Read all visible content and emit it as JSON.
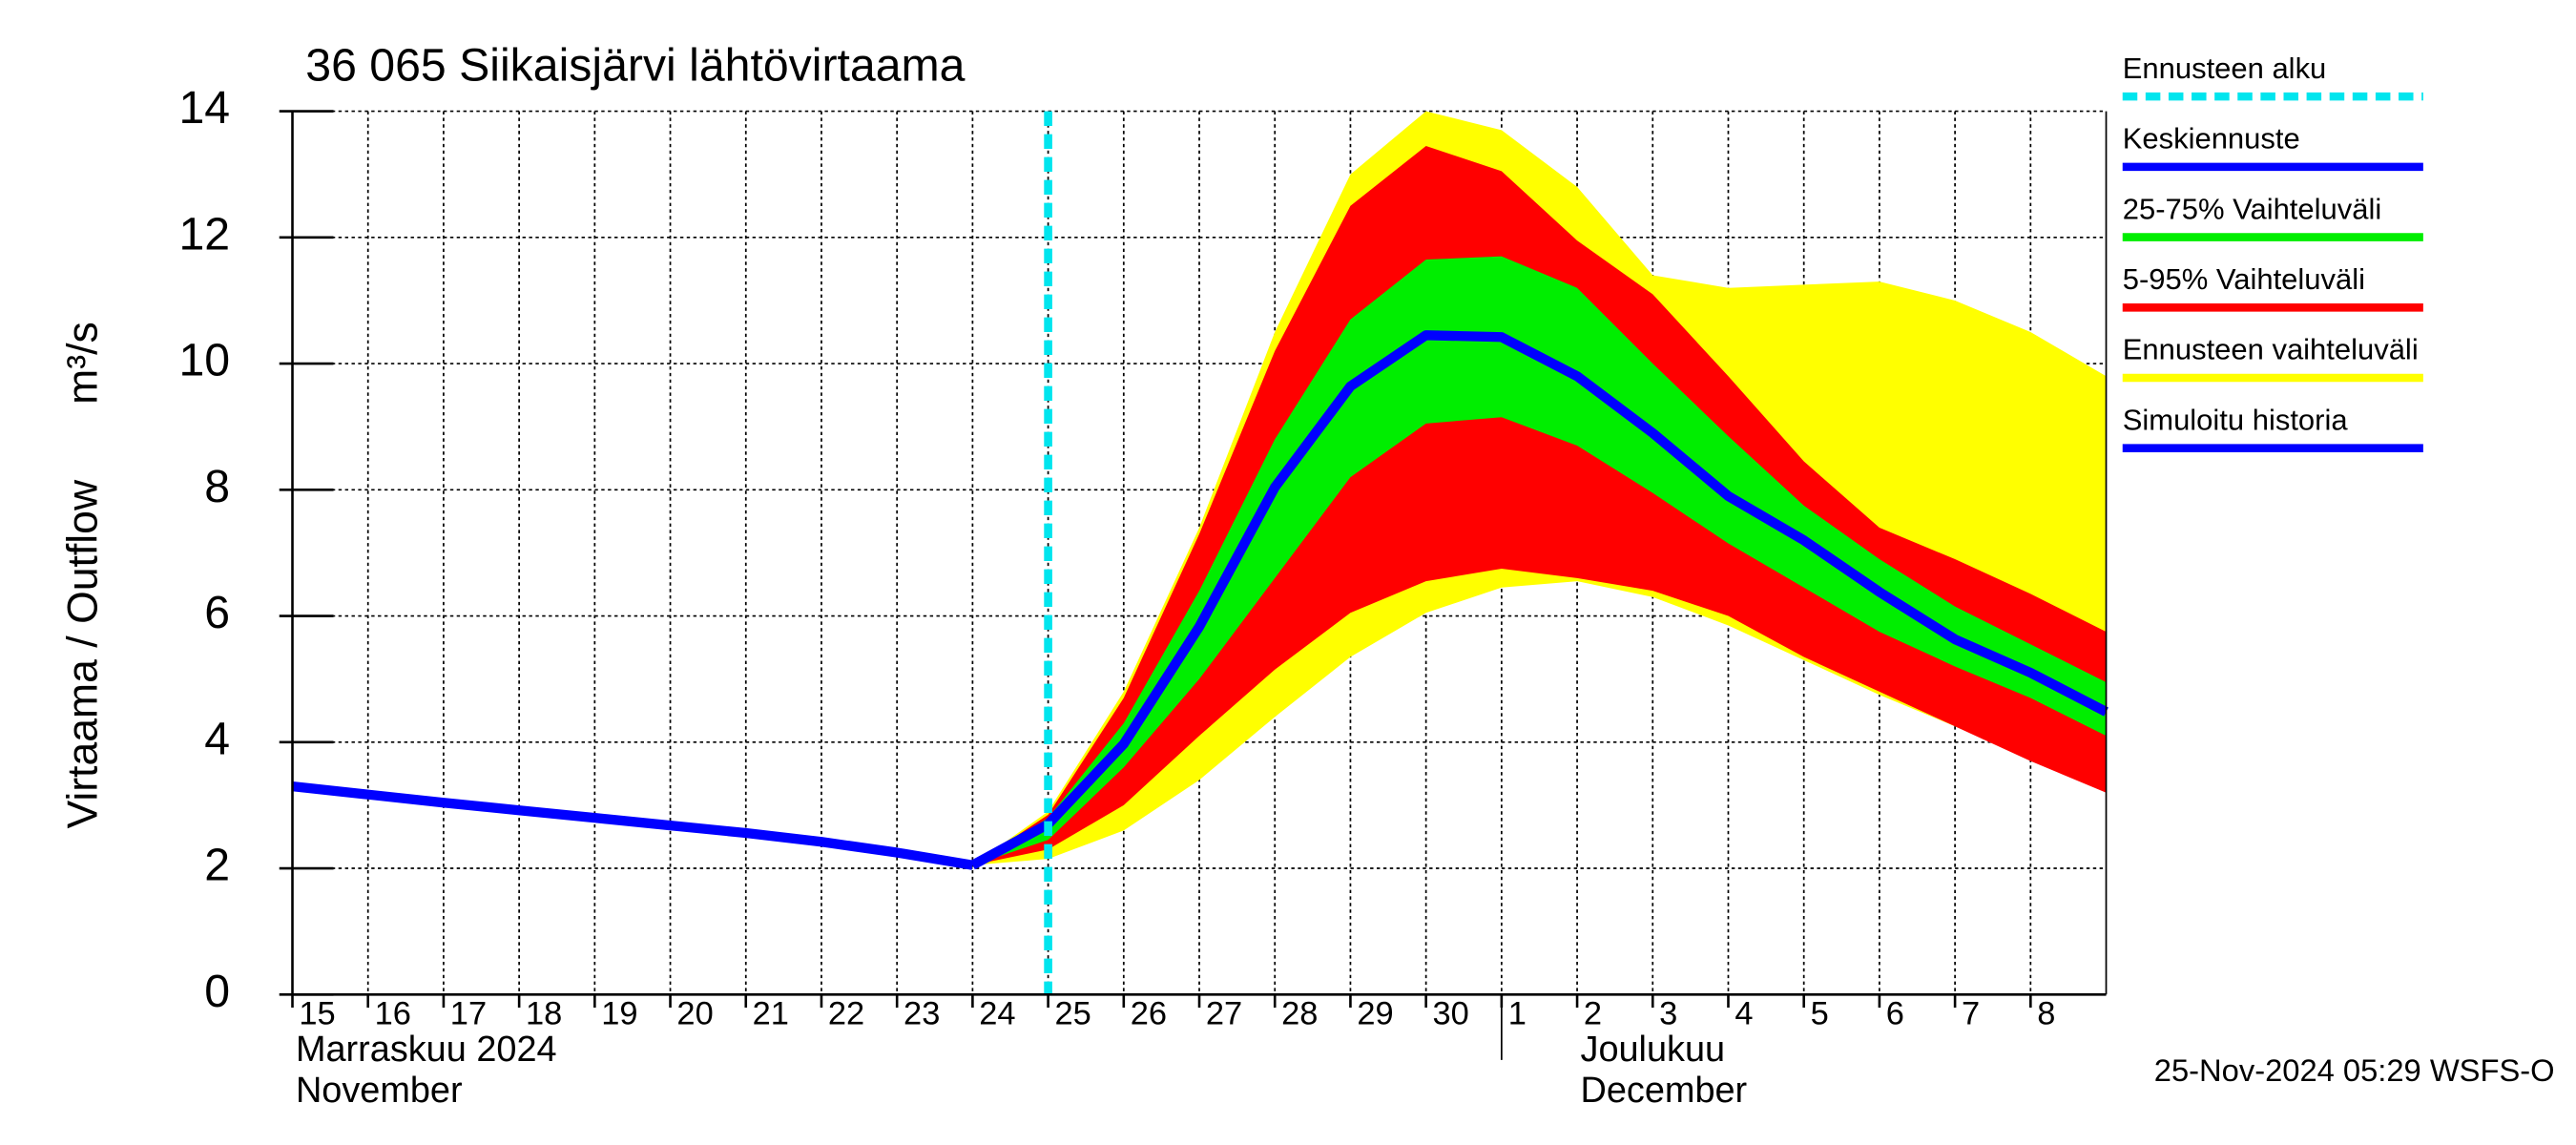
{
  "chart_data": {
    "type": "hydrograph",
    "title": "36 065 Siikaisjärvi lähtövirtaama",
    "y_label": "Virtaama / Outflow",
    "y_unit": "m³/s",
    "month_labels": [
      "Marraskuu 2024",
      "November",
      "Joulukuu",
      "December"
    ],
    "footer": "25-Nov-2024 05:29 WSFS-O",
    "xlim": [
      "2024-11-15",
      "2024-12-09"
    ],
    "xticks": [
      {
        "value": "2024-11-15",
        "label": "15"
      },
      {
        "value": "2024-11-16",
        "label": "16"
      },
      {
        "value": "2024-11-17",
        "label": "17"
      },
      {
        "value": "2024-11-18",
        "label": "18"
      },
      {
        "value": "2024-11-19",
        "label": "19"
      },
      {
        "value": "2024-11-20",
        "label": "20"
      },
      {
        "value": "2024-11-21",
        "label": "21"
      },
      {
        "value": "2024-11-22",
        "label": "22"
      },
      {
        "value": "2024-11-23",
        "label": "23"
      },
      {
        "value": "2024-11-24",
        "label": "24"
      },
      {
        "value": "2024-11-25",
        "label": "25"
      },
      {
        "value": "2024-11-26",
        "label": "26"
      },
      {
        "value": "2024-11-27",
        "label": "27"
      },
      {
        "value": "2024-11-28",
        "label": "28"
      },
      {
        "value": "2024-11-29",
        "label": "29"
      },
      {
        "value": "2024-11-30",
        "label": "30"
      },
      {
        "value": "2024-12-01",
        "label": "1"
      },
      {
        "value": "2024-12-02",
        "label": "2"
      },
      {
        "value": "2024-12-03",
        "label": "3"
      },
      {
        "value": "2024-12-04",
        "label": "4"
      },
      {
        "value": "2024-12-05",
        "label": "5"
      },
      {
        "value": "2024-12-06",
        "label": "6"
      },
      {
        "value": "2024-12-07",
        "label": "7"
      },
      {
        "value": "2024-12-08",
        "label": "8"
      }
    ],
    "ylim": [
      0,
      14
    ],
    "yticks": [
      0,
      2,
      4,
      6,
      8,
      10,
      12,
      14
    ],
    "grid": true,
    "series": [
      {
        "name": "Ennusteen alku",
        "color": "#00e5ee",
        "style": "vline",
        "x": "2024-11-25"
      },
      {
        "name": "Keskiennuste",
        "color": "#0000ff",
        "style": "line",
        "x": [
          "2024-11-24",
          "2024-11-25",
          "2024-11-26",
          "2024-11-27",
          "2024-11-28",
          "2024-11-29",
          "2024-11-30",
          "2024-12-01",
          "2024-12-02",
          "2024-12-03",
          "2024-12-04",
          "2024-12-05",
          "2024-12-06",
          "2024-12-07",
          "2024-12-08",
          "2024-12-09"
        ],
        "values": [
          2.05,
          2.7,
          3.97,
          5.83,
          8.04,
          9.64,
          10.45,
          10.42,
          9.8,
          8.9,
          7.9,
          7.2,
          6.38,
          5.63,
          5.1,
          4.48
        ]
      },
      {
        "name": "25-75% Vaihteluväli",
        "color": "#00ee00",
        "style": "band",
        "x": [
          "2024-11-24",
          "2024-11-25",
          "2024-11-26",
          "2024-11-27",
          "2024-11-28",
          "2024-11-29",
          "2024-11-30",
          "2024-12-01",
          "2024-12-02",
          "2024-12-03",
          "2024-12-04",
          "2024-12-05",
          "2024-12-06",
          "2024-12-07",
          "2024-12-08",
          "2024-12-09"
        ],
        "high": [
          2.05,
          2.8,
          4.3,
          6.4,
          8.8,
          10.7,
          11.65,
          11.7,
          11.2,
          10.0,
          8.85,
          7.75,
          6.9,
          6.15,
          5.55,
          4.95
        ],
        "low": [
          2.05,
          2.45,
          3.6,
          5.0,
          6.6,
          8.2,
          9.05,
          9.15,
          8.7,
          7.95,
          7.15,
          6.45,
          5.75,
          5.2,
          4.7,
          4.1
        ]
      },
      {
        "name": "5-95% Vaihteluväli",
        "color": "#ff0000",
        "style": "band",
        "x": [
          "2024-11-24",
          "2024-11-25",
          "2024-11-26",
          "2024-11-27",
          "2024-11-28",
          "2024-11-29",
          "2024-11-30",
          "2024-12-01",
          "2024-12-02",
          "2024-12-03",
          "2024-12-04",
          "2024-12-05",
          "2024-12-06",
          "2024-12-07",
          "2024-12-08",
          "2024-12-09"
        ],
        "high": [
          2.05,
          2.85,
          4.7,
          7.3,
          10.2,
          12.5,
          13.45,
          13.05,
          11.95,
          11.1,
          9.8,
          8.45,
          7.4,
          6.9,
          6.35,
          5.75
        ],
        "low": [
          2.05,
          2.3,
          3.0,
          4.1,
          5.15,
          6.05,
          6.55,
          6.75,
          6.6,
          6.4,
          6.0,
          5.35,
          4.8,
          4.25,
          3.7,
          3.2
        ]
      },
      {
        "name": "Ennusteen vaihteluväli",
        "color": "#ffff00",
        "style": "band",
        "x": [
          "2024-11-24",
          "2024-11-25",
          "2024-11-26",
          "2024-11-27",
          "2024-11-28",
          "2024-11-29",
          "2024-11-30",
          "2024-12-01",
          "2024-12-02",
          "2024-12-03",
          "2024-12-04",
          "2024-12-05",
          "2024-12-06",
          "2024-12-07",
          "2024-12-08",
          "2024-12-09"
        ],
        "high": [
          2.05,
          2.9,
          4.8,
          7.4,
          10.5,
          13.0,
          14.0,
          13.7,
          12.8,
          11.4,
          11.2,
          11.25,
          11.3,
          11.0,
          10.5,
          9.8
        ],
        "low": [
          2.05,
          2.15,
          2.6,
          3.4,
          4.4,
          5.35,
          6.05,
          6.45,
          6.55,
          6.3,
          5.85,
          5.3,
          4.75,
          4.25,
          3.75,
          3.25
        ]
      },
      {
        "name": "Simuloitu historia",
        "color": "#0000ff",
        "style": "line",
        "x": [
          "2024-11-15",
          "2024-11-16",
          "2024-11-17",
          "2024-11-18",
          "2024-11-19",
          "2024-11-20",
          "2024-11-21",
          "2024-11-22",
          "2024-11-23",
          "2024-11-24"
        ],
        "values": [
          3.3,
          3.17,
          3.04,
          2.92,
          2.8,
          2.68,
          2.56,
          2.42,
          2.25,
          2.05
        ]
      }
    ]
  }
}
